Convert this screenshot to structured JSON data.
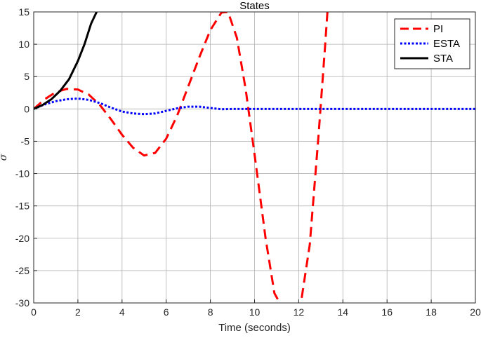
{
  "chart_data": {
    "type": "line",
    "title": "States",
    "xlabel": "Time (seconds)",
    "ylabel": "σ",
    "xlim": [
      0,
      20
    ],
    "ylim": [
      -30,
      15
    ],
    "xticks": [
      0,
      2,
      4,
      6,
      8,
      10,
      12,
      14,
      16,
      18,
      20
    ],
    "yticks": [
      15,
      10,
      5,
      0,
      -5,
      -10,
      -15,
      -20,
      -25,
      -30
    ],
    "grid": true,
    "legend_position": "top-right",
    "series": [
      {
        "name": "PI",
        "color": "#ff0000",
        "style": "dashed",
        "x": [
          0,
          0.5,
          1.0,
          1.5,
          2.0,
          2.5,
          3.0,
          3.5,
          4.0,
          4.5,
          5.0,
          5.5,
          6.0,
          6.5,
          7.0,
          7.5,
          8.0,
          8.5,
          8.8,
          9.2,
          9.6,
          10.0,
          10.5,
          10.9,
          11.3,
          11.7,
          12.1,
          12.5,
          12.9,
          13.2,
          13.3
        ],
        "y": [
          0,
          1.5,
          2.6,
          3.1,
          3.0,
          2.2,
          0.6,
          -1.6,
          -4.0,
          -6.0,
          -7.2,
          -6.8,
          -4.6,
          -1.0,
          3.5,
          8.0,
          12.2,
          14.9,
          15.0,
          11.0,
          3.0,
          -7.0,
          -20.0,
          -28.5,
          -31.0,
          -31.0,
          -30.0,
          -21.0,
          -4.0,
          10.0,
          15.0
        ]
      },
      {
        "name": "ESTA",
        "color": "#0000ff",
        "style": "dotted",
        "x": [
          0,
          0.5,
          1.0,
          1.5,
          2.0,
          2.5,
          3.0,
          3.5,
          4.0,
          4.5,
          5.0,
          5.5,
          6.0,
          6.5,
          7.0,
          7.5,
          8.0,
          8.5,
          9.0,
          10.0,
          12.0,
          14.0,
          16.0,
          18.0,
          20.0
        ],
        "y": [
          0,
          0.7,
          1.2,
          1.5,
          1.6,
          1.4,
          0.9,
          0.2,
          -0.4,
          -0.7,
          -0.8,
          -0.7,
          -0.3,
          0.1,
          0.35,
          0.35,
          0.15,
          -0.05,
          0.0,
          0.0,
          0.0,
          0.0,
          0.0,
          0.0,
          0.0
        ]
      },
      {
        "name": "STA",
        "color": "#000000",
        "style": "solid",
        "x": [
          0,
          0.4,
          0.8,
          1.2,
          1.6,
          2.0,
          2.3,
          2.6,
          2.85
        ],
        "y": [
          0,
          0.6,
          1.5,
          2.8,
          4.6,
          7.4,
          10.0,
          13.2,
          15.0
        ]
      }
    ]
  }
}
